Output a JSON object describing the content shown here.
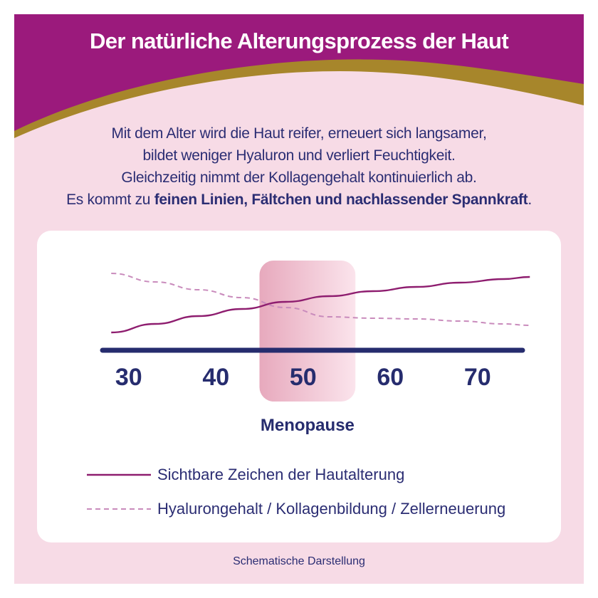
{
  "header": {
    "title": "Der natürliche Alterungsprozess der Haut"
  },
  "intro": {
    "line1": "Mit dem Alter wird die Haut reifer, erneuert sich langsamer,",
    "line2": "bildet weniger Hyaluron und verliert Feuchtigkeit.",
    "line3": "Gleichzeitig nimmt der Kollagengehalt kontinuierlich ab.",
    "line4_prefix": "Es kommt zu ",
    "line4_bold": "feinen Linien, Fältchen und nachlassender Spannkraft",
    "line4_suffix": "."
  },
  "footnote": "Schematische Darstellung",
  "colors": {
    "header_purple": "#9b1a7c",
    "header_gold": "#a7862b",
    "background_pink": "#f7dbe6",
    "axis_navy": "#262c6e",
    "line_purple": "#8e1d6f",
    "line_dashed": "#c98bbc",
    "highlight_pink": "#e7a9bd"
  },
  "chart_data": {
    "type": "line",
    "title": "",
    "xlabel": "",
    "ylabel": "",
    "x_ticks": [
      "30",
      "40",
      "50",
      "60",
      "70"
    ],
    "xlim": [
      27,
      75
    ],
    "ylim": [
      0,
      100
    ],
    "highlight": {
      "label": "Menopause",
      "x_range": [
        45,
        56
      ]
    },
    "legend_placement": "bottom",
    "series": [
      {
        "name": "Sichtbare Zeichen der Hautalterung",
        "style": "solid",
        "color": "#8e1d6f",
        "x": [
          28,
          33,
          38,
          43,
          48,
          53,
          58,
          63,
          68,
          73,
          76
        ],
        "y": [
          15,
          27,
          38,
          48,
          58,
          66,
          73,
          79,
          85,
          90,
          93
        ]
      },
      {
        "name": "Hyalurongehalt / Kollagenbildung / Zellerneuerung",
        "style": "dashed",
        "color": "#c98bbc",
        "x": [
          28,
          33,
          38,
          43,
          48,
          53,
          58,
          63,
          68,
          73,
          76
        ],
        "y": [
          98,
          86,
          75,
          64,
          50,
          37,
          35,
          34,
          31,
          27,
          25
        ]
      }
    ]
  }
}
